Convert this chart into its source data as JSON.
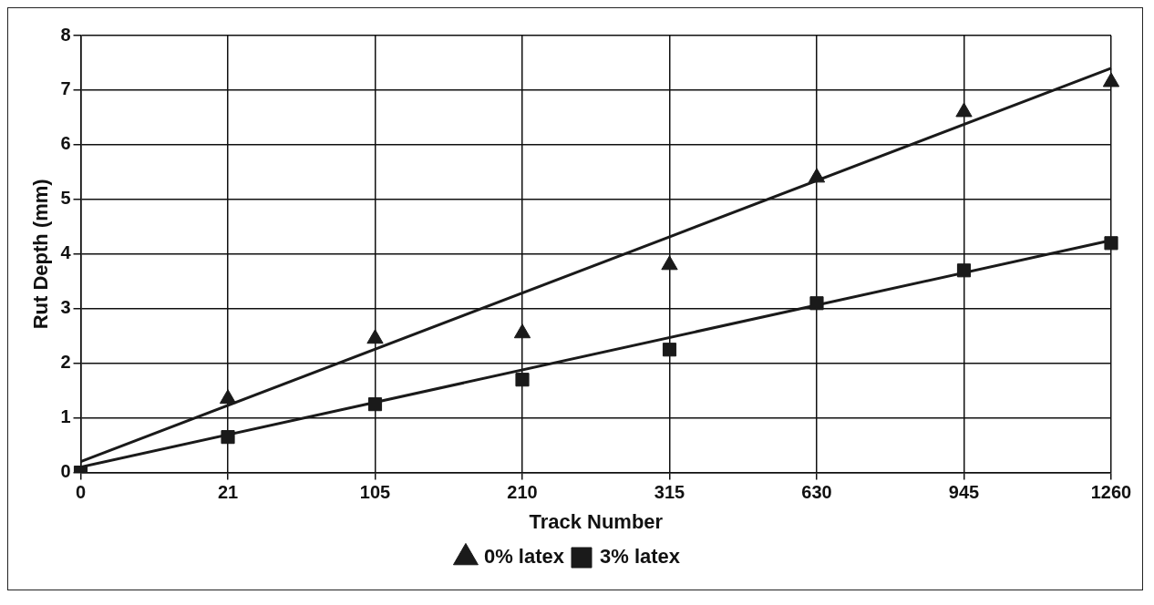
{
  "chart_data": {
    "type": "scatter",
    "xlabel": "Track Number",
    "ylabel": "Rut Depth (mm)",
    "categories": [
      "0",
      "21",
      "105",
      "210",
      "315",
      "630",
      "945",
      "1260"
    ],
    "series": [
      {
        "name": "0% latex",
        "marker": "triangle",
        "color": "#1a1a1a",
        "values": [
          null,
          1.35,
          2.45,
          2.55,
          3.8,
          5.4,
          6.6,
          7.15
        ]
      },
      {
        "name": "3% latex",
        "marker": "square",
        "color": "#1a1a1a",
        "values": [
          0,
          0.65,
          1.25,
          1.7,
          2.25,
          3.1,
          3.7,
          4.2
        ]
      },
      {
        "type": "line",
        "marker": "none",
        "color": "#1a1a1a",
        "values": [
          0.2,
          null,
          null,
          null,
          null,
          null,
          null,
          7.4
        ]
      },
      {
        "type": "line",
        "marker": "none",
        "color": "#1a1a1a",
        "values": [
          0.1,
          null,
          null,
          null,
          null,
          null,
          null,
          4.25
        ]
      }
    ],
    "ylim": [
      0,
      8
    ],
    "yticks": [
      0,
      1,
      2,
      3,
      4,
      5,
      6,
      7,
      8
    ],
    "grid": true,
    "legend": "bottom"
  }
}
